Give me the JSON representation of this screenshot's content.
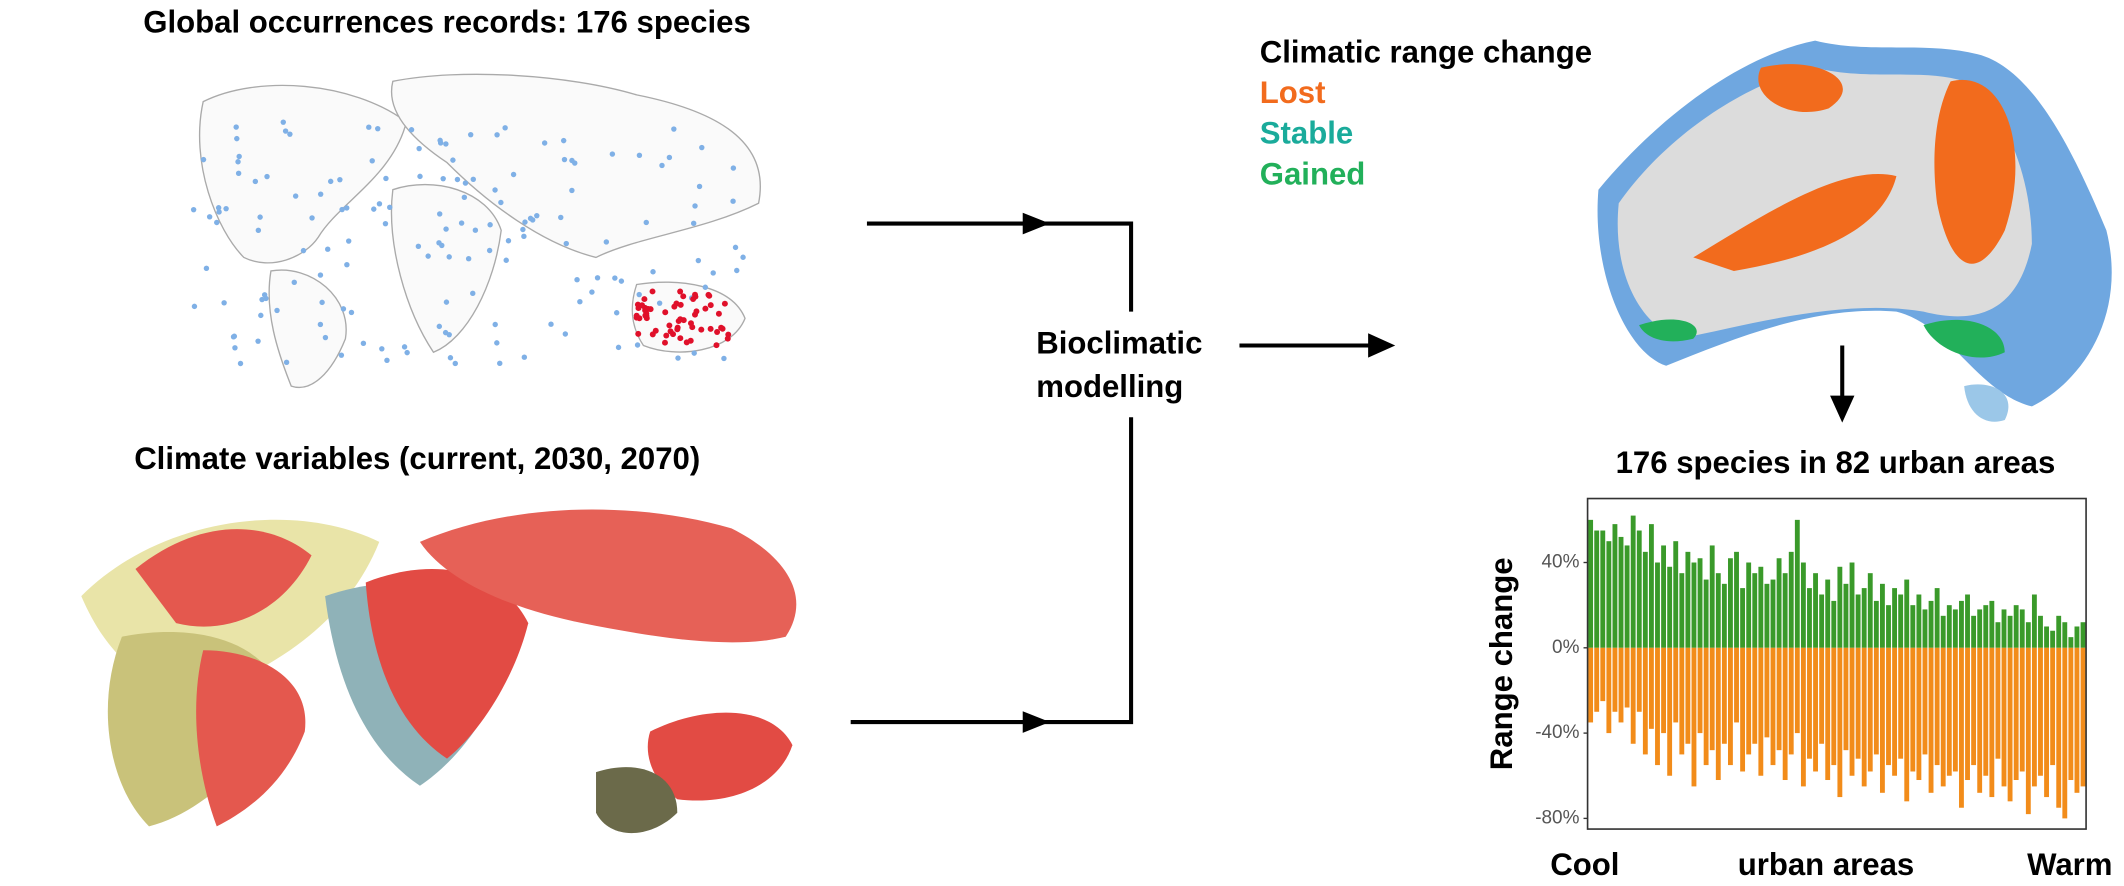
{
  "diagram": {
    "top_left_title": "Global occurrences records: 176 species",
    "bottom_left_title": "Climate variables (current, 2030, 2070)",
    "center_label": [
      "Bioclimatic",
      "modelling"
    ],
    "legend": {
      "title": "Climatic range change",
      "items": [
        {
          "label": "Lost",
          "color": "#f26b1d"
        },
        {
          "label": "Stable",
          "color": "#1aab9b"
        },
        {
          "label": "Gained",
          "color": "#22b05a"
        }
      ]
    }
  },
  "chart_data": {
    "type": "bar",
    "title": "176 species in 82 urban areas",
    "y_label": "Range change",
    "xlabels": [
      "Cool",
      "urban areas",
      "Warm"
    ],
    "ylim": [
      -85,
      70
    ],
    "yticks": [
      {
        "value": 40,
        "label": "40%"
      },
      {
        "value": 0,
        "label": "0%"
      },
      {
        "value": -40,
        "label": "-40%"
      },
      {
        "value": -80,
        "label": "-80%"
      }
    ],
    "series": [
      {
        "color": "#3a9a2a",
        "values": [
          60,
          55,
          55,
          50,
          58,
          52,
          48,
          62,
          55,
          45,
          58,
          40,
          48,
          38,
          50,
          35,
          45,
          40,
          42,
          32,
          48,
          35,
          30,
          42,
          45,
          28,
          40,
          35,
          38,
          30,
          32,
          42,
          35,
          45,
          60,
          40,
          28,
          35,
          25,
          32,
          22,
          38,
          30,
          40,
          25,
          28,
          35,
          22,
          30,
          20,
          28,
          25,
          32,
          20,
          25,
          18,
          22,
          28,
          15,
          20,
          18,
          22,
          25,
          15,
          18,
          20,
          22,
          12,
          18,
          15,
          20,
          18,
          12,
          25,
          15,
          10,
          8,
          15,
          12,
          5,
          10,
          12
        ]
      },
      {
        "color": "#f28c1a",
        "values": [
          -35,
          -30,
          -25,
          -40,
          -30,
          -35,
          -28,
          -45,
          -30,
          -50,
          -38,
          -55,
          -40,
          -60,
          -35,
          -50,
          -45,
          -65,
          -40,
          -55,
          -48,
          -62,
          -45,
          -55,
          -35,
          -58,
          -50,
          -45,
          -60,
          -42,
          -55,
          -48,
          -62,
          -50,
          -40,
          -65,
          -52,
          -58,
          -45,
          -62,
          -55,
          -70,
          -48,
          -60,
          -52,
          -65,
          -58,
          -50,
          -68,
          -55,
          -60,
          -52,
          -72,
          -58,
          -62,
          -50,
          -68,
          -55,
          -65,
          -60,
          -58,
          -75,
          -62,
          -55,
          -68,
          -60,
          -70,
          -52,
          -65,
          -72,
          -62,
          -58,
          -78,
          -65,
          -60,
          -70,
          -55,
          -75,
          -80,
          -62,
          -68,
          -65
        ]
      }
    ]
  }
}
